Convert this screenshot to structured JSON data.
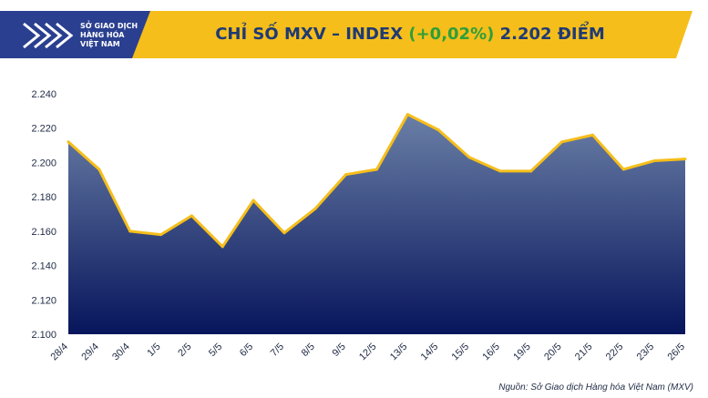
{
  "title": {
    "prefix": "CHỈ SỐ MXV – INDEX ",
    "change": "(+0,02%)",
    "suffix": " 2.202 ĐIỂM"
  },
  "logo": {
    "line1": "SỞ GIAO DỊCH",
    "line2": "HÀNG HÓA",
    "line3": "VIỆT NAM",
    "icon": "mxv-chevron-logo"
  },
  "source": "Nguồn: Sở Giao dịch Hàng hóa Việt Nam (MXV)",
  "colors": {
    "header": "#f5be1a",
    "title": "#1f3a74",
    "change": "#2e9e3a",
    "line": "#f5be1a",
    "area_top": "#6a7fa6",
    "area_bottom": "#07155c",
    "logo_bg": "#2a3f8f"
  },
  "chart_data": {
    "type": "area",
    "title": "CHỈ SỐ MXV – INDEX (+0,02%) 2.202 ĐIỂM",
    "categories": [
      "28/4",
      "29/4",
      "30/4",
      "1/5",
      "2/5",
      "5/5",
      "6/5",
      "7/5",
      "8/5",
      "9/5",
      "12/5",
      "13/5",
      "14/5",
      "15/5",
      "16/5",
      "19/5",
      "20/5",
      "21/5",
      "22/5",
      "23/5",
      "26/5"
    ],
    "series": [
      {
        "values": [
          2212,
          2196,
          2160,
          2158,
          2169,
          2151,
          2178,
          2159,
          2173,
          2193,
          2196,
          2228,
          2219,
          2203,
          2195,
          2195,
          2212,
          2216,
          2196,
          2201,
          2202
        ]
      }
    ],
    "ylim": [
      2100,
      2240
    ],
    "yticks": [
      "2.100",
      "2.120",
      "2.140",
      "2.160",
      "2.180",
      "2.200",
      "2.220",
      "2.240"
    ],
    "ytick_values": [
      2100,
      2120,
      2140,
      2160,
      2180,
      2200,
      2220,
      2240
    ],
    "grid": false,
    "legend": "none",
    "xlabel": "",
    "ylabel": ""
  }
}
